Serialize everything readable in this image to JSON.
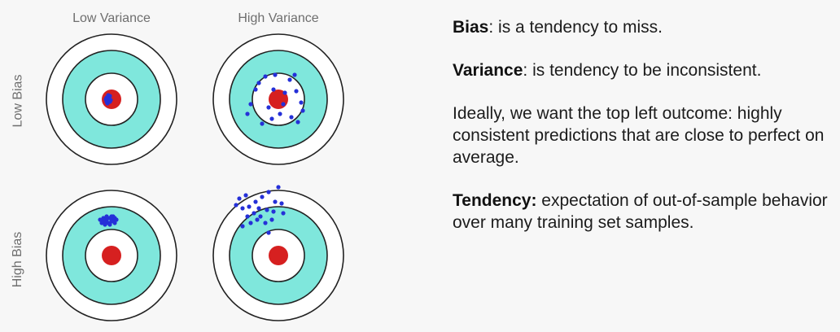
{
  "diagram": {
    "col_labels": [
      "Low Variance",
      "High Variance"
    ],
    "row_labels": [
      "Low Bias",
      "High Bias"
    ],
    "targets": [
      {
        "name": "target-low-bias-low-variance",
        "points_offset": [
          [
            -6,
            -2
          ],
          [
            -4,
            2
          ],
          [
            -2,
            -4
          ],
          [
            -1,
            1
          ],
          [
            -5,
            5
          ],
          [
            -3,
            -1
          ],
          [
            -7,
            0
          ],
          [
            -2,
            3
          ],
          [
            -4,
            -5
          ],
          [
            -6,
            3
          ]
        ]
      },
      {
        "name": "target-low-bias-high-variance",
        "points_offset": [
          [
            -16,
            -28
          ],
          [
            -4,
            -30
          ],
          [
            14,
            -24
          ],
          [
            22,
            -10
          ],
          [
            28,
            4
          ],
          [
            30,
            14
          ],
          [
            -34,
            6
          ],
          [
            -38,
            18
          ],
          [
            -28,
            -12
          ],
          [
            -12,
            10
          ],
          [
            2,
            18
          ],
          [
            16,
            22
          ],
          [
            -20,
            30
          ],
          [
            8,
            -8
          ],
          [
            -6,
            -12
          ],
          [
            6,
            6
          ],
          [
            -8,
            24
          ],
          [
            20,
            -30
          ],
          [
            -24,
            -20
          ],
          [
            24,
            28
          ]
        ]
      },
      {
        "name": "target-high-bias-low-variance",
        "points_offset": [
          [
            -10,
            -46
          ],
          [
            -6,
            -44
          ],
          [
            -2,
            -46
          ],
          [
            2,
            -44
          ],
          [
            -8,
            -42
          ],
          [
            -4,
            -40
          ],
          [
            0,
            -42
          ],
          [
            4,
            -40
          ],
          [
            -12,
            -40
          ],
          [
            -6,
            -48
          ],
          [
            0,
            -48
          ],
          [
            -10,
            -44
          ],
          [
            -2,
            -38
          ],
          [
            2,
            -48
          ],
          [
            6,
            -44
          ],
          [
            -14,
            -44
          ],
          [
            -8,
            -38
          ],
          [
            4,
            -46
          ]
        ]
      },
      {
        "name": "target-high-bias-high-variance",
        "points_offset": [
          [
            -48,
            -70
          ],
          [
            -40,
            -74
          ],
          [
            -36,
            -60
          ],
          [
            -28,
            -66
          ],
          [
            -20,
            -72
          ],
          [
            -12,
            -78
          ],
          [
            0,
            -84
          ],
          [
            -4,
            -66
          ],
          [
            -30,
            -52
          ],
          [
            -38,
            -48
          ],
          [
            -22,
            -48
          ],
          [
            -14,
            -56
          ],
          [
            -6,
            -54
          ],
          [
            6,
            -52
          ],
          [
            4,
            -64
          ],
          [
            -44,
            -58
          ],
          [
            -26,
            -44
          ],
          [
            -16,
            -40
          ],
          [
            -34,
            -40
          ],
          [
            -12,
            -28
          ],
          [
            -44,
            -36
          ],
          [
            -8,
            -44
          ],
          [
            -52,
            -62
          ],
          [
            -24,
            -58
          ]
        ]
      }
    ]
  },
  "paragraphs": [
    {
      "term": "Bias",
      "rest": ": is a tendency to miss."
    },
    {
      "term": "Variance",
      "rest": ": is tendency to be inconsistent."
    },
    {
      "term": "",
      "rest": "Ideally, we want the top left outcome: highly consistent predictions that are close to perfect on average."
    },
    {
      "term": "Tendency:",
      "rest": " expectation of out-of-sample behavior over many training set samples."
    }
  ],
  "colors": {
    "ring_stroke": "#222222",
    "teal_ring": "#7fe7dc",
    "white": "#ffffff",
    "bullseye": "#d62020",
    "dot": "#2530d8"
  }
}
